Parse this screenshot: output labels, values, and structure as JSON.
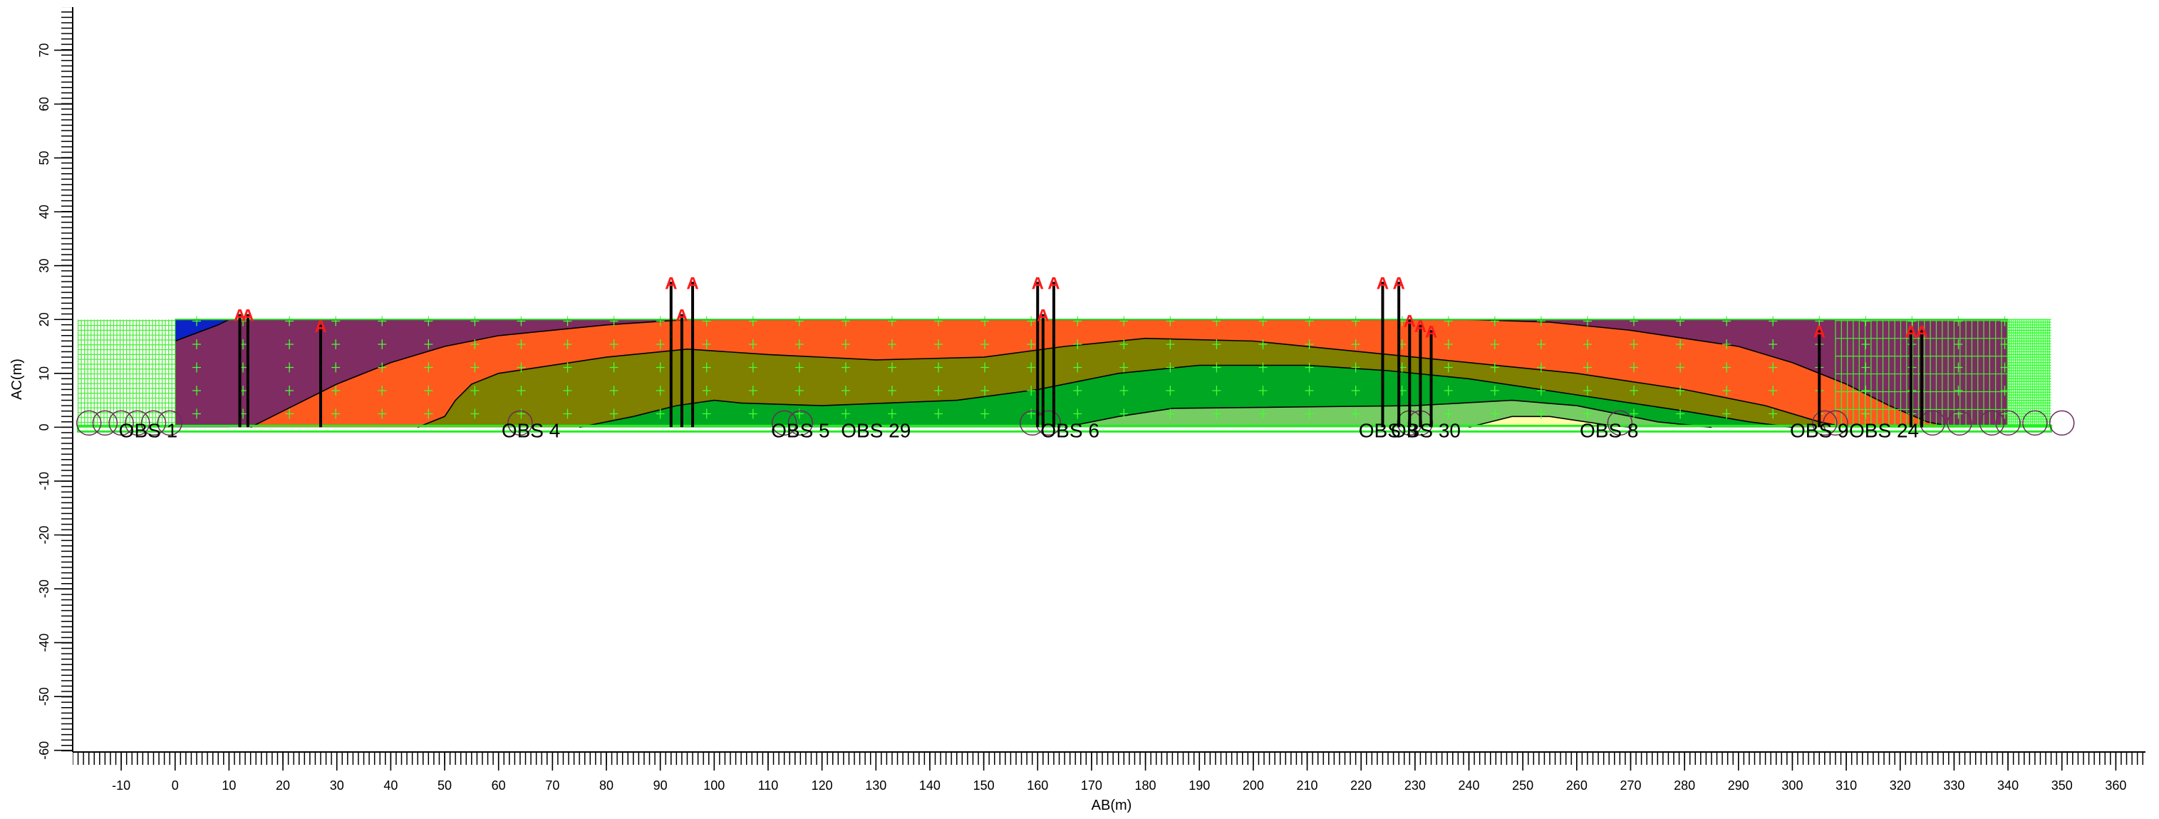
{
  "chart_data": {
    "type": "area",
    "xlabel": "AB(m)",
    "ylabel": "AC(m)",
    "xlim": [
      -19,
      365.5
    ],
    "ylim": [
      -60.3,
      78
    ],
    "xticks": [
      -10,
      0,
      10,
      20,
      30,
      40,
      50,
      60,
      70,
      80,
      90,
      100,
      110,
      120,
      130,
      140,
      150,
      160,
      170,
      180,
      190,
      200,
      210,
      220,
      230,
      240,
      250,
      260,
      270,
      280,
      290,
      300,
      310,
      320,
      330,
      340,
      350,
      360
    ],
    "yticks": [
      -60,
      -50,
      -40,
      -30,
      -20,
      -10,
      0,
      10,
      20,
      30,
      40,
      50,
      60,
      70
    ],
    "series": [
      {
        "color": "#0a22c8",
        "x": [
          0,
          10
        ],
        "values": [
          20,
          20
        ]
      },
      {
        "color": "#7e2c62",
        "x": [
          0,
          8,
          10,
          340
        ],
        "values": [
          16,
          19,
          20,
          20
        ]
      },
      {
        "color": "#ff5a1e",
        "x": [
          14,
          20,
          30,
          40,
          50,
          60,
          80,
          95,
          240,
          255,
          270,
          290,
          300,
          310,
          318,
          325,
          330
        ],
        "values": [
          0,
          3,
          8,
          12,
          15,
          17,
          19,
          20,
          20,
          19.5,
          18,
          15,
          12,
          8,
          4,
          1,
          0
        ]
      },
      {
        "color": "#7f7f00",
        "x": [
          45,
          50,
          52,
          55,
          60,
          80,
          95,
          110,
          130,
          150,
          165,
          180,
          200,
          220,
          240,
          260,
          280,
          295,
          305,
          310
        ],
        "values": [
          0,
          2,
          5,
          8,
          10,
          13,
          14.5,
          13.5,
          12.5,
          13,
          15,
          16.5,
          16,
          14,
          12,
          10,
          7,
          4,
          1,
          0
        ]
      },
      {
        "color": "#00a722",
        "x": [
          75,
          85,
          93,
          100,
          105,
          120,
          145,
          160,
          175,
          190,
          210,
          225,
          240,
          260,
          280,
          292,
          300
        ],
        "values": [
          0,
          2,
          4,
          5,
          4.5,
          4,
          5,
          7,
          10,
          11.5,
          11.5,
          10.5,
          9,
          6,
          3,
          1,
          0
        ]
      },
      {
        "color": "#74cc62",
        "x": [
          165,
          175,
          185,
          230,
          248,
          260,
          275,
          285
        ],
        "values": [
          0,
          2,
          3.5,
          4,
          5,
          4,
          1,
          0
        ]
      },
      {
        "color": "#ffffa8",
        "x": [
          240,
          248,
          255,
          265,
          270
        ],
        "values": [
          0,
          2,
          2,
          0.5,
          0
        ]
      }
    ],
    "points_x": [
      -16,
      -13,
      -10,
      -7,
      -4,
      -1,
      64,
      113,
      116,
      159,
      162,
      229,
      231,
      268,
      306,
      308,
      326,
      331,
      337,
      340,
      345,
      350
    ],
    "boreholes": [
      {
        "x": 12,
        "top": 21,
        "label": "A"
      },
      {
        "x": 13.5,
        "top": 21,
        "label": "A"
      },
      {
        "x": 27,
        "top": 19,
        "label": "A"
      },
      {
        "x": 92,
        "top": 27,
        "label": "A"
      },
      {
        "x": 94,
        "top": 21,
        "label": "A"
      },
      {
        "x": 96,
        "top": 27,
        "label": "A"
      },
      {
        "x": 160,
        "top": 27,
        "label": "A"
      },
      {
        "x": 161,
        "top": 21,
        "label": "A"
      },
      {
        "x": 163,
        "top": 27,
        "label": "A"
      },
      {
        "x": 224,
        "top": 27,
        "label": "A"
      },
      {
        "x": 227,
        "top": 27,
        "label": "A"
      },
      {
        "x": 229,
        "top": 20,
        "label": "A"
      },
      {
        "x": 231,
        "top": 19,
        "label": "A"
      },
      {
        "x": 233,
        "top": 18,
        "label": "A"
      },
      {
        "x": 305,
        "top": 18,
        "label": "A"
      },
      {
        "x": 322,
        "top": 18,
        "label": "A"
      },
      {
        "x": 324,
        "top": 18,
        "label": "A"
      }
    ],
    "annotations": [
      {
        "x": -5,
        "text": "OBS 1"
      },
      {
        "x": 66,
        "text": "OBS 4"
      },
      {
        "x": 116,
        "text": "OBS 5"
      },
      {
        "x": 130,
        "text": "OBS 29"
      },
      {
        "x": 166,
        "text": "OBS 6"
      },
      {
        "x": 225,
        "text": "OBS 3"
      },
      {
        "x": 232,
        "text": "OBS 30"
      },
      {
        "x": 266,
        "text": "OBS 8"
      },
      {
        "x": 305,
        "text": "OBS 9"
      },
      {
        "x": 317,
        "text": "OBS 24"
      }
    ]
  }
}
